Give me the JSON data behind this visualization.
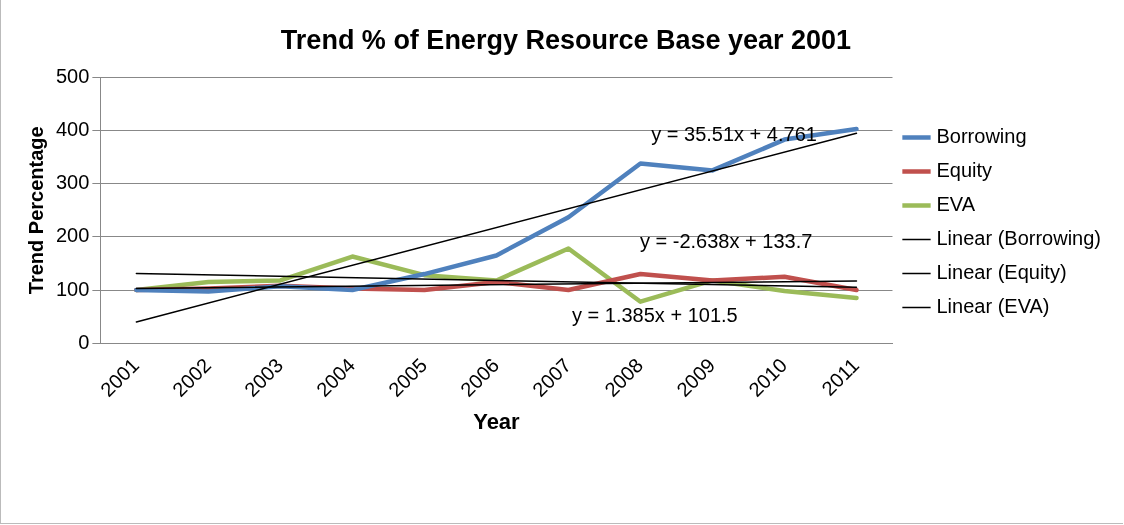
{
  "chart_data": {
    "type": "line",
    "title": "Trend % of Energy Resource Base year 2001",
    "xlabel": "Year",
    "ylabel": "Trend Percentage",
    "categories": [
      "2001",
      "2002",
      "2003",
      "2004",
      "2005",
      "2006",
      "2007",
      "2008",
      "2009",
      "2010",
      "2011"
    ],
    "series": [
      {
        "name": "Borrowing",
        "color": "#4f81bd",
        "values": [
          100,
          97,
          107,
          100,
          130,
          165,
          237,
          338,
          325,
          383,
          403
        ]
      },
      {
        "name": "Equity",
        "color": "#c0504d",
        "values": [
          100,
          103,
          108,
          103,
          100,
          115,
          100,
          130,
          118,
          125,
          100
        ]
      },
      {
        "name": "EVA",
        "color": "#9bbb59",
        "values": [
          100,
          115,
          118,
          163,
          128,
          118,
          178,
          78,
          118,
          98,
          85
        ]
      },
      {
        "name": "Linear (Borrowing)",
        "color": "#000000",
        "values": [
          40,
          null,
          null,
          null,
          null,
          null,
          null,
          null,
          null,
          null,
          395
        ]
      },
      {
        "name": "Linear (Equity)",
        "color": "#000000",
        "values": [
          131,
          null,
          null,
          null,
          null,
          null,
          null,
          null,
          null,
          null,
          105
        ]
      },
      {
        "name": "Linear (EVA)",
        "color": "#000000",
        "values": [
          103,
          null,
          null,
          null,
          null,
          null,
          null,
          null,
          null,
          null,
          117
        ]
      }
    ],
    "ylim": [
      0,
      500
    ],
    "yticks": [
      0,
      100,
      200,
      300,
      400,
      500
    ],
    "grid": "y",
    "legend": "right",
    "annotations": [
      "y = 35.51x + 4.761",
      "y = -2.638x + 133.7",
      "y = 1.385x + 101.5"
    ]
  }
}
